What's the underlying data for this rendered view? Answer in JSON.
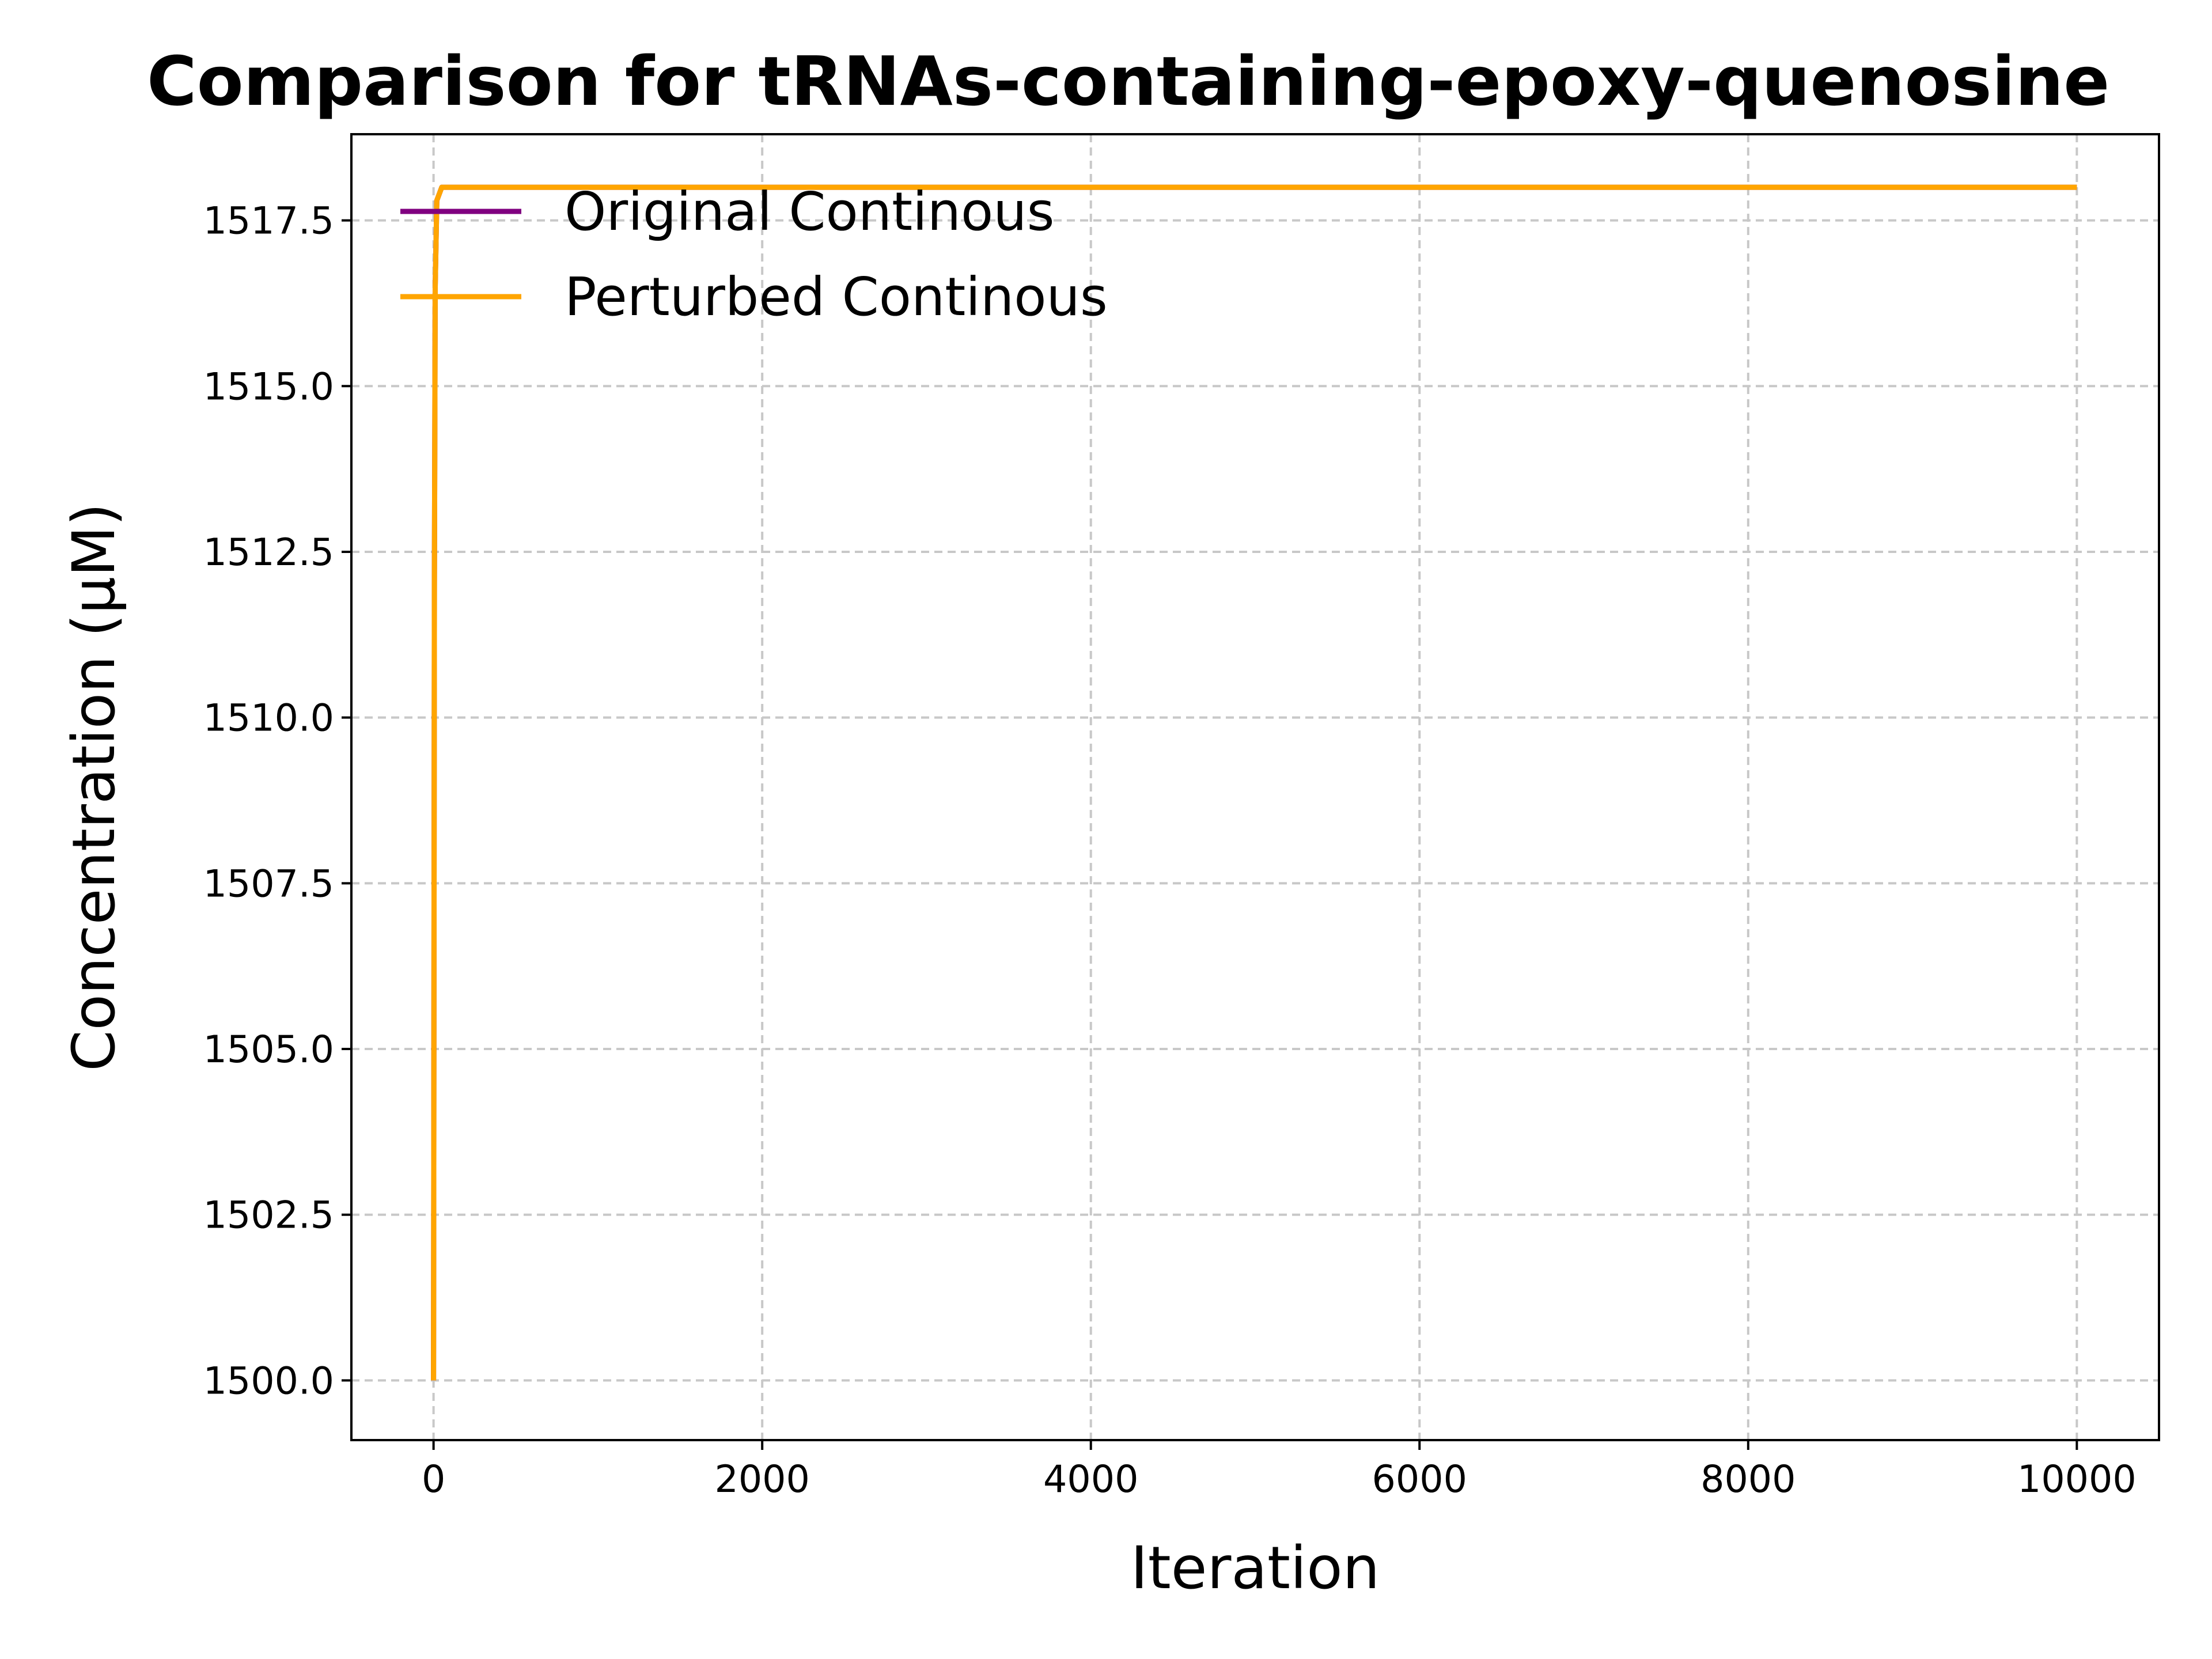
{
  "chart_data": {
    "type": "line",
    "title": "Comparison for tRNAs-containing-epoxy-quenosine",
    "xlabel": "Iteration",
    "ylabel": "Concentration (μM)",
    "xlim": [
      -500,
      10500
    ],
    "ylim": [
      1499.1,
      1518.8
    ],
    "xticks": [
      0,
      2000,
      4000,
      6000,
      8000,
      10000
    ],
    "xtick_labels": [
      "0",
      "2000",
      "4000",
      "6000",
      "8000",
      "10000"
    ],
    "yticks": [
      1500.0,
      1502.5,
      1505.0,
      1507.5,
      1510.0,
      1512.5,
      1515.0,
      1517.5
    ],
    "ytick_labels": [
      "1500.0",
      "1502.5",
      "1505.0",
      "1507.5",
      "1510.0",
      "1512.5",
      "1515.0",
      "1517.5"
    ],
    "grid": true,
    "legend_position": "top-left",
    "series": [
      {
        "name": "Original Continous",
        "color": "#800080",
        "x": [
          0,
          5,
          10,
          20,
          50,
          100,
          10000
        ],
        "y": [
          1500.0,
          1512.0,
          1516.5,
          1517.8,
          1518.0,
          1518.0,
          1518.0
        ]
      },
      {
        "name": "Perturbed Continous",
        "color": "#FFA500",
        "x": [
          0,
          5,
          10,
          20,
          50,
          100,
          10000
        ],
        "y": [
          1500.0,
          1512.0,
          1516.5,
          1517.8,
          1518.0,
          1518.0,
          1518.0
        ]
      }
    ]
  }
}
